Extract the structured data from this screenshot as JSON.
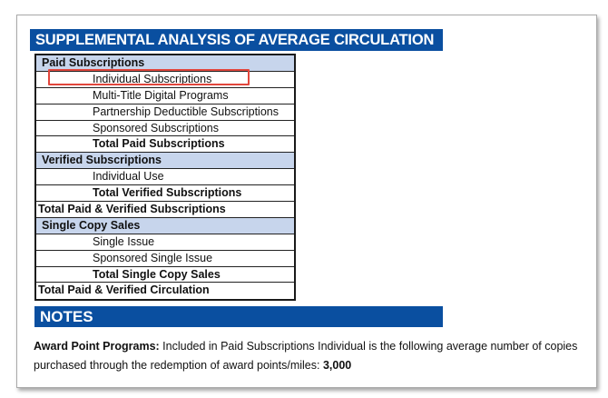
{
  "title": "SUPPLEMENTAL ANALYSIS OF AVERAGE CIRCULATION",
  "rows": [
    {
      "type": "header",
      "label": "Paid Subscriptions"
    },
    {
      "type": "item",
      "label": "Individual Subscriptions",
      "highlighted": true
    },
    {
      "type": "item",
      "label": "Multi-Title Digital Programs"
    },
    {
      "type": "item",
      "label": "Partnership Deductible Subscriptions"
    },
    {
      "type": "item",
      "label": "Sponsored Subscriptions"
    },
    {
      "type": "total",
      "label": "Total Paid Subscriptions"
    },
    {
      "type": "header",
      "label": "Verified Subscriptions"
    },
    {
      "type": "item",
      "label": "Individual Use"
    },
    {
      "type": "total",
      "label": "Total Verified Subscriptions"
    },
    {
      "type": "grand",
      "label": "Total Paid & Verified Subscriptions"
    },
    {
      "type": "header",
      "label": "Single Copy Sales"
    },
    {
      "type": "item",
      "label": "Single Issue"
    },
    {
      "type": "item",
      "label": "Sponsored Single Issue"
    },
    {
      "type": "total",
      "label": "Total Single Copy Sales"
    },
    {
      "type": "grand",
      "label": "Total Paid & Verified Circulation"
    }
  ],
  "notes": {
    "heading": "NOTES",
    "label": "Award Point Programs:",
    "text": " Included in Paid Subscriptions Individual is the following average number of copies purchased through the redemption of award points/miles: ",
    "value": "3,000"
  },
  "colors": {
    "header_bar": "#0a4fa0",
    "section_header": "#c7d5ec",
    "highlight": "#e2463c"
  }
}
